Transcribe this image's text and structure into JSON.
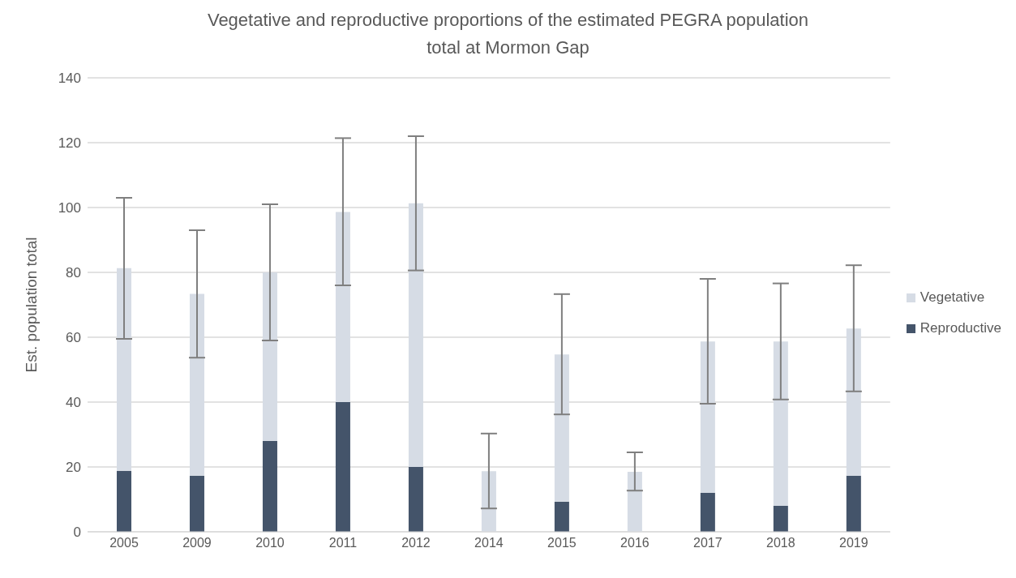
{
  "chart_data": {
    "type": "bar",
    "title": "Vegetative and reproductive proportions of the estimated PEGRA population total at Mormon Gap",
    "ylabel": "Est. population total",
    "categories": [
      "2005",
      "2009",
      "2010",
      "2011",
      "2012",
      "2014",
      "2015",
      "2016",
      "2017",
      "2018",
      "2019"
    ],
    "stacked": true,
    "series": [
      {
        "name": "Reproductive",
        "color": "#44546a",
        "values": [
          18.8,
          17.3,
          28,
          40,
          20,
          0,
          9.3,
          0,
          12,
          8,
          17.3
        ]
      },
      {
        "name": "Vegetative",
        "color": "#d6dce5",
        "values": [
          62.5,
          56.1,
          52,
          58.6,
          81.3,
          18.7,
          45.4,
          18.5,
          46.7,
          50.7,
          45.4
        ],
        "errors": [
          [
            59.5,
            103
          ],
          [
            53.7,
            93
          ],
          [
            59,
            101
          ],
          [
            76,
            121.4
          ],
          [
            80.6,
            122
          ],
          [
            7.2,
            30.3
          ],
          [
            36.2,
            73.3
          ],
          [
            12.7,
            24.5
          ],
          [
            39.5,
            78
          ],
          [
            40.8,
            76.6
          ],
          [
            43.3,
            82.2
          ]
        ]
      }
    ],
    "ylim": [
      0,
      140
    ],
    "yticks": [
      0,
      20,
      40,
      60,
      80,
      100,
      120,
      140
    ],
    "grid": "y",
    "legend": "right"
  }
}
